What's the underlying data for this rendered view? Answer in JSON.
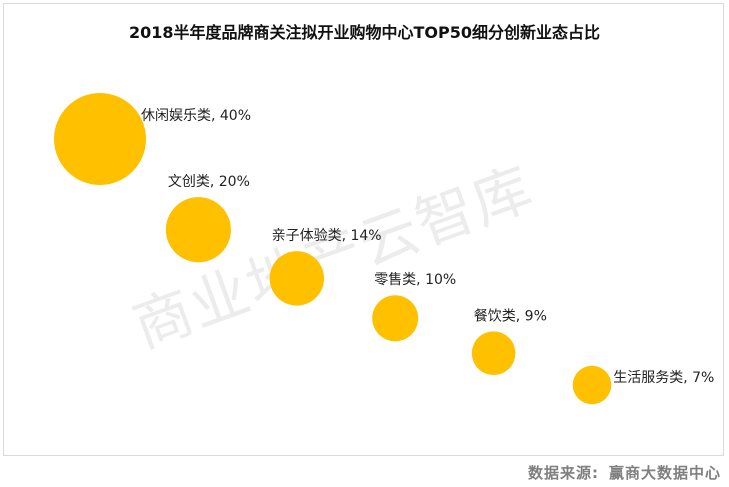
{
  "title": "2018半年度品牌商关注拟开业购物中心TOP50细分创新业态占比",
  "watermark": "商业地产云智库",
  "source": {
    "label": "数据来源:",
    "value": "赢商大数据中心"
  },
  "chart_data": {
    "type": "scatter",
    "title": "2018半年度品牌商关注拟开业购物中心TOP50细分创新业态占比",
    "categories": [
      "休闲娱乐类",
      "文创类",
      "亲子体验类",
      "零售类",
      "餐饮类",
      "生活服务类"
    ],
    "values": [
      40,
      20,
      14,
      10,
      9,
      7
    ],
    "unit": "%",
    "data_labels": [
      "休闲娱乐类, 40%",
      "文创类, 20%",
      "亲子体验类, 14%",
      "零售类, 10%",
      "餐饮类, 9%",
      "生活服务类, 7%"
    ],
    "bubble_color": "#FFC000",
    "grid": false,
    "axes_visible": false
  }
}
